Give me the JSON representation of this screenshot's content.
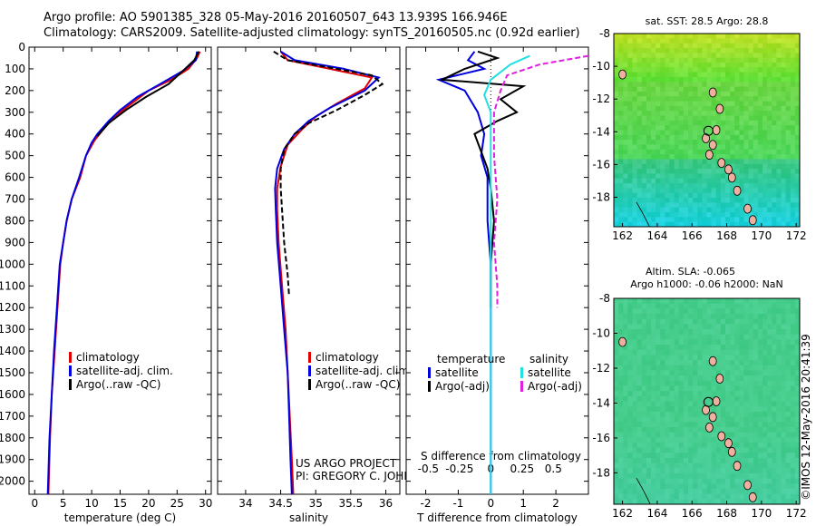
{
  "header": {
    "line1": "Argo profile: AO 5901385_328 05-May-2016 20160507_643 13.939S 166.946E",
    "line2": "Climatology: CARS2009. Satellite-adjusted climatology: synTS_20160505.nc (0.92d earlier)"
  },
  "colors": {
    "climatology": "#e00000",
    "satellite": "#0000e0",
    "argo": "#000000",
    "sal_satellite": "#20e0e0",
    "sal_argo": "#e020e0"
  },
  "chart_data": [
    {
      "type": "line",
      "id": "temperature",
      "xlabel": "temperature (deg C)",
      "ylim": [
        2060,
        0
      ],
      "xlim": [
        -1,
        31
      ],
      "xticks": [
        0,
        5,
        10,
        15,
        20,
        25,
        30
      ],
      "yticks": [
        0,
        100,
        200,
        300,
        400,
        500,
        600,
        700,
        800,
        900,
        1000,
        1100,
        1200,
        1300,
        1400,
        1500,
        1600,
        1700,
        1800,
        1900,
        2000
      ],
      "legend": {
        "position": "bottom-center",
        "entries": [
          "climatology",
          "satellite-adj. clim.",
          "Argo(..raw -QC)"
        ]
      },
      "series": [
        {
          "name": "climatology",
          "color": "#e00000",
          "points": [
            [
              29,
              20
            ],
            [
              28.5,
              50
            ],
            [
              27,
              100
            ],
            [
              24,
              150
            ],
            [
              20,
              200
            ],
            [
              17,
              260
            ],
            [
              14,
              320
            ],
            [
              12,
              380
            ],
            [
              10.5,
              430
            ],
            [
              9,
              500
            ],
            [
              8,
              600
            ],
            [
              6.5,
              700
            ],
            [
              5.6,
              800
            ],
            [
              5,
              900
            ],
            [
              4.5,
              1000
            ],
            [
              4,
              1200
            ],
            [
              3.5,
              1400
            ],
            [
              3,
              1600
            ],
            [
              2.7,
              1800
            ],
            [
              2.4,
              2060
            ]
          ]
        },
        {
          "name": "satellite-adj. clim.",
          "color": "#0000e0",
          "points": [
            [
              28.5,
              20
            ],
            [
              28.3,
              60
            ],
            [
              26,
              110
            ],
            [
              22,
              170
            ],
            [
              18,
              230
            ],
            [
              15,
              290
            ],
            [
              13,
              340
            ],
            [
              11,
              400
            ],
            [
              10,
              440
            ],
            [
              9,
              500
            ],
            [
              7.8,
              600
            ],
            [
              6.5,
              700
            ],
            [
              5.6,
              800
            ],
            [
              5,
              900
            ],
            [
              4.4,
              1000
            ],
            [
              3.9,
              1200
            ],
            [
              3.4,
              1400
            ],
            [
              3,
              1600
            ],
            [
              2.6,
              1800
            ],
            [
              2.3,
              2060
            ]
          ]
        },
        {
          "name": "Argo(..raw -QC)",
          "color": "#000000",
          "points": [
            [
              28.8,
              20
            ],
            [
              28,
              60
            ],
            [
              26,
              110
            ],
            [
              23.5,
              170
            ],
            [
              19.5,
              230
            ],
            [
              16,
              290
            ],
            [
              13,
              350
            ],
            [
              11,
              410
            ]
          ]
        }
      ]
    },
    {
      "type": "line",
      "id": "salinity",
      "xlabel": "salinity",
      "ylim": [
        2060,
        0
      ],
      "xlim": [
        33.6,
        36.2
      ],
      "xticks": [
        34,
        34.5,
        35,
        35.5,
        36
      ],
      "legend": {
        "position": "bottom-right",
        "entries": [
          "climatology",
          "satellite-adj. clim.",
          "Argo(..raw -QC)"
        ]
      },
      "annotation": [
        "US ARGO PROJECT",
        "PI: GREGORY C. JOHNSON"
      ],
      "series": [
        {
          "name": "climatology",
          "color": "#e00000",
          "points": [
            [
              34.5,
              20
            ],
            [
              34.6,
              60
            ],
            [
              35.2,
              100
            ],
            [
              35.8,
              140
            ],
            [
              35.7,
              190
            ],
            [
              35.3,
              260
            ],
            [
              35,
              320
            ],
            [
              34.8,
              380
            ],
            [
              34.6,
              450
            ],
            [
              34.5,
              550
            ],
            [
              34.45,
              650
            ],
            [
              34.45,
              750
            ],
            [
              34.47,
              900
            ],
            [
              34.52,
              1100
            ],
            [
              34.57,
              1300
            ],
            [
              34.6,
              1500
            ],
            [
              34.63,
              1700
            ],
            [
              34.66,
              1900
            ],
            [
              34.68,
              2060
            ]
          ]
        },
        {
          "name": "satellite-adj. clim.",
          "color": "#0000e0",
          "points": [
            [
              34.5,
              20
            ],
            [
              34.7,
              60
            ],
            [
              35.4,
              100
            ],
            [
              35.9,
              140
            ],
            [
              35.7,
              200
            ],
            [
              35.2,
              280
            ],
            [
              34.9,
              340
            ],
            [
              34.7,
              400
            ],
            [
              34.55,
              470
            ],
            [
              34.45,
              560
            ],
            [
              34.42,
              650
            ],
            [
              34.43,
              750
            ],
            [
              34.45,
              900
            ],
            [
              34.5,
              1100
            ],
            [
              34.55,
              1300
            ],
            [
              34.6,
              1500
            ],
            [
              34.62,
              1700
            ],
            [
              34.64,
              1900
            ],
            [
              34.66,
              2060
            ]
          ]
        },
        {
          "name": "Argo(..raw -QC)",
          "color": "#000000",
          "points": [
            [
              34.4,
              20
            ],
            [
              34.6,
              60
            ],
            [
              35.3,
              100
            ],
            [
              35.8,
              130
            ],
            [
              35.95,
              170
            ],
            [
              35.7,
              220
            ],
            [
              35.3,
              290
            ],
            [
              34.9,
              350
            ],
            [
              34.7,
              400
            ],
            [
              34.55,
              470
            ],
            [
              34.5,
              560
            ],
            [
              34.5,
              650
            ],
            [
              34.52,
              750
            ],
            [
              34.55,
              900
            ],
            [
              34.6,
              1050
            ],
            [
              34.62,
              1150
            ]
          ]
        }
      ]
    },
    {
      "type": "line",
      "id": "difference",
      "xlabel": "T difference from climatology",
      "x2label": "S difference from climatology",
      "ylim": [
        2060,
        0
      ],
      "xlim": [
        -2.6,
        3.0
      ],
      "xticks": [
        -2,
        -1,
        0,
        1,
        2
      ],
      "x2ticks": [
        -0.5,
        -0.25,
        0,
        0.25,
        0.5
      ],
      "legend": {
        "position": "bottom",
        "temperature_title": "temperature",
        "salinity_title": "salinity",
        "entries": [
          "satellite",
          "Argo(-adj)",
          "satellite",
          "Argo(-adj)"
        ]
      },
      "series": [
        {
          "name": "satellite",
          "color": "#0000e0",
          "points": [
            [
              -0.5,
              20
            ],
            [
              -0.7,
              60
            ],
            [
              -0.2,
              100
            ],
            [
              -1.6,
              150
            ],
            [
              -0.8,
              200
            ],
            [
              -0.4,
              300
            ],
            [
              -0.2,
              400
            ],
            [
              -0.3,
              500
            ],
            [
              -0.1,
              600
            ],
            [
              -0.1,
              800
            ],
            [
              0,
              1000
            ],
            [
              0,
              1200
            ],
            [
              0,
              1500
            ],
            [
              0,
              2060
            ]
          ]
        },
        {
          "name": "Argo(-adj)",
          "color": "#000000",
          "points": [
            [
              -0.4,
              20
            ],
            [
              0.2,
              50
            ],
            [
              -0.8,
              100
            ],
            [
              -1.5,
              150
            ],
            [
              1.0,
              180
            ],
            [
              0.3,
              240
            ],
            [
              0.8,
              300
            ],
            [
              0.2,
              340
            ],
            [
              -0.5,
              400
            ],
            [
              -0.3,
              480
            ],
            [
              -0.1,
              560
            ],
            [
              0,
              650
            ],
            [
              0.1,
              800
            ],
            [
              0,
              1000
            ],
            [
              0,
              1200
            ]
          ]
        },
        {
          "name": "satellite",
          "color": "#20e0e0",
          "points": [
            [
              1.2,
              40
            ],
            [
              0.6,
              80
            ],
            [
              0,
              150
            ],
            [
              -0.2,
              220
            ],
            [
              0,
              300
            ],
            [
              0,
              500
            ],
            [
              0,
              1000
            ],
            [
              0,
              1500
            ],
            [
              0,
              2060
            ]
          ]
        },
        {
          "name": "Argo(-adj)",
          "color": "#e020e0",
          "points": [
            [
              3.0,
              40
            ],
            [
              1.5,
              80
            ],
            [
              0.5,
              130
            ],
            [
              0.3,
              200
            ],
            [
              0.1,
              300
            ],
            [
              0.1,
              500
            ],
            [
              0.2,
              700
            ],
            [
              0.1,
              900
            ],
            [
              0.2,
              1100
            ],
            [
              0.2,
              1200
            ]
          ]
        }
      ]
    },
    {
      "type": "heatmap",
      "id": "sst_map",
      "title": "sat. SST: 28.5 Argo: 28.8",
      "xlim": [
        161.5,
        172.2
      ],
      "ylim": [
        -19.8,
        -8
      ],
      "xticks": [
        162,
        164,
        166,
        168,
        170,
        172
      ],
      "yticks": [
        -8,
        -10,
        -12,
        -14,
        -16,
        -18
      ],
      "marker": {
        "lon": 166.946,
        "lat": -13.939
      }
    },
    {
      "type": "heatmap",
      "id": "sla_map",
      "title": "Altim. SLA: -0.065",
      "subtitle": "Argo h1000: -0.06 h2000: NaN",
      "xlim": [
        161.5,
        172.2
      ],
      "ylim": [
        -19.8,
        -8
      ],
      "xticks": [
        162,
        164,
        166,
        168,
        170,
        172
      ],
      "yticks": [
        -8,
        -10,
        -12,
        -14,
        -16,
        -18
      ],
      "marker": {
        "lon": 166.946,
        "lat": -13.939
      }
    }
  ],
  "credit": "©IMOS 12-May-2016 20:41:39"
}
